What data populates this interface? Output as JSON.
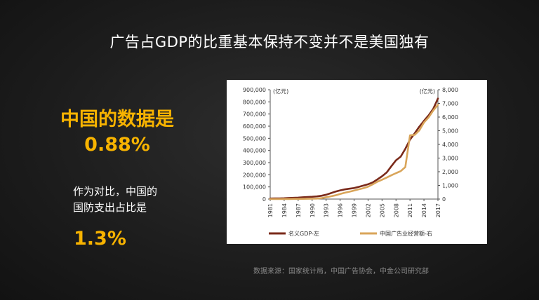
{
  "slide": {
    "title": "广告占GDP的比重基本保持不变并不是美国独有",
    "china_label": "中国的数据是",
    "china_value": "0.88%",
    "compare_line1": "作为对比，中国的",
    "compare_line2": "国防支出占比是",
    "compare_value": "1.3%",
    "source": "数据来源：国家统计局，中国广告协会，中金公司研究部"
  },
  "colors": {
    "accent": "#f7b300",
    "gdp": "#7a2a1a",
    "ads": "#d9a55a"
  },
  "chart_data": {
    "type": "line",
    "left_unit": "(亿元)",
    "right_unit": "(亿元)",
    "x": [
      1981,
      1982,
      1983,
      1984,
      1985,
      1986,
      1987,
      1988,
      1989,
      1990,
      1991,
      1992,
      1993,
      1994,
      1995,
      1996,
      1997,
      1998,
      1999,
      2000,
      2001,
      2002,
      2003,
      2004,
      2005,
      2006,
      2007,
      2008,
      2009,
      2010,
      2011,
      2012,
      2013,
      2014,
      2015,
      2016,
      2017
    ],
    "x_ticks": [
      "1981",
      "1984",
      "1987",
      "1990",
      "1993",
      "1996",
      "1999",
      "2002",
      "2005",
      "2008",
      "2011",
      "2014",
      "2017"
    ],
    "yleft_ticks": [
      "0",
      "100,000",
      "200,000",
      "300,000",
      "400,000",
      "500,000",
      "600,000",
      "700,000",
      "800,000",
      "900,000"
    ],
    "yright_ticks": [
      "0",
      "1,000",
      "2,000",
      "3,000",
      "4,000",
      "5,000",
      "6,000",
      "7,000",
      "8,000"
    ],
    "ylim_left": [
      0,
      900000
    ],
    "ylim_right": [
      0,
      8000
    ],
    "series": [
      {
        "name": "名义GDP-左",
        "axis": "left",
        "values": [
          4900,
          5300,
          6000,
          7200,
          9100,
          10300,
          12100,
          15100,
          17100,
          18900,
          22000,
          27200,
          35700,
          48600,
          61300,
          71800,
          79700,
          85200,
          90600,
          100300,
          110900,
          121700,
          137400,
          161800,
          187300,
          219400,
          270200,
          319500,
          349100,
          413000,
          489300,
          540400,
          595200,
          643900,
          689100,
          743600,
          827100
        ]
      },
      {
        "name": "中国广告业经营额-右",
        "axis": "right",
        "values": [
          1,
          2,
          2,
          4,
          6,
          8,
          11,
          15,
          20,
          25,
          35,
          68,
          134,
          200,
          273,
          367,
          462,
          538,
          622,
          713,
          795,
          903,
          1079,
          1265,
          1416,
          1573,
          1741,
          1899,
          2041,
          2341,
          4662,
          4698,
          5020,
          5606,
          5973,
          6489,
          6896
        ]
      }
    ]
  }
}
